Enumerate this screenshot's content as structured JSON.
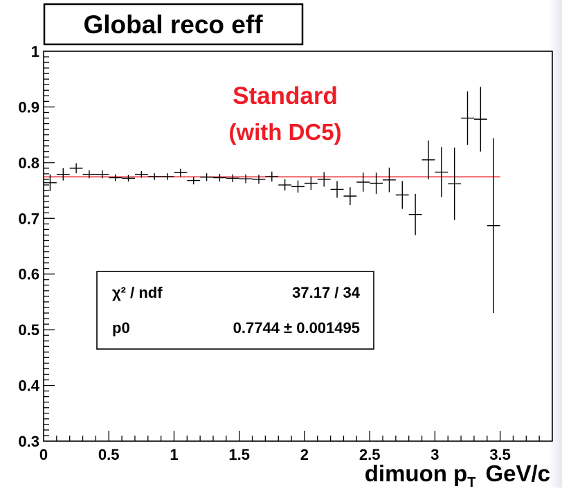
{
  "chart_data": {
    "type": "scatter",
    "title": "Global reco eff",
    "annotation": [
      "Standard",
      "(with DC5)"
    ],
    "annotation_color": "#ee1c25",
    "xlabel": "dimuon p",
    "xlabel_sub": "T",
    "xlabel_unit": "GeV/c",
    "xlim": [
      0,
      3.9
    ],
    "ylim": [
      0.3,
      1.0
    ],
    "x_ticks": [
      "0",
      "0.5",
      "1",
      "1.5",
      "2",
      "2.5",
      "3",
      "3.5"
    ],
    "y_ticks": [
      "0.3",
      "0.4",
      "0.5",
      "0.6",
      "0.7",
      "0.8",
      "0.9",
      "1"
    ],
    "grid": false,
    "fit": {
      "value": 0.7744,
      "x_range": [
        0,
        3.5
      ],
      "color": "#e8000b",
      "stats": {
        "chi2_label": "χ² / ndf",
        "chi2_value": "37.17 / 34",
        "p0_label": "p0",
        "p0_value": "0.7744 ± 0.001495",
        "position": "left-middle"
      }
    },
    "series": [
      {
        "points": [
          {
            "x": 0.05,
            "y": 0.764,
            "err": 0.015
          },
          {
            "x": 0.15,
            "y": 0.779,
            "err": 0.011
          },
          {
            "x": 0.25,
            "y": 0.79,
            "err": 0.009
          },
          {
            "x": 0.35,
            "y": 0.779,
            "err": 0.007
          },
          {
            "x": 0.45,
            "y": 0.779,
            "err": 0.007
          },
          {
            "x": 0.55,
            "y": 0.773,
            "err": 0.006
          },
          {
            "x": 0.65,
            "y": 0.772,
            "err": 0.006
          },
          {
            "x": 0.75,
            "y": 0.779,
            "err": 0.006
          },
          {
            "x": 0.85,
            "y": 0.775,
            "err": 0.006
          },
          {
            "x": 0.95,
            "y": 0.775,
            "err": 0.006
          },
          {
            "x": 1.05,
            "y": 0.782,
            "err": 0.007
          },
          {
            "x": 1.15,
            "y": 0.768,
            "err": 0.007
          },
          {
            "x": 1.25,
            "y": 0.774,
            "err": 0.007
          },
          {
            "x": 1.35,
            "y": 0.773,
            "err": 0.007
          },
          {
            "x": 1.45,
            "y": 0.772,
            "err": 0.007
          },
          {
            "x": 1.55,
            "y": 0.771,
            "err": 0.008
          },
          {
            "x": 1.65,
            "y": 0.77,
            "err": 0.008
          },
          {
            "x": 1.75,
            "y": 0.775,
            "err": 0.009
          },
          {
            "x": 1.85,
            "y": 0.76,
            "err": 0.01
          },
          {
            "x": 1.95,
            "y": 0.757,
            "err": 0.011
          },
          {
            "x": 2.05,
            "y": 0.763,
            "err": 0.012
          },
          {
            "x": 2.15,
            "y": 0.77,
            "err": 0.013
          },
          {
            "x": 2.25,
            "y": 0.752,
            "err": 0.015
          },
          {
            "x": 2.35,
            "y": 0.74,
            "err": 0.016
          },
          {
            "x": 2.45,
            "y": 0.765,
            "err": 0.017
          },
          {
            "x": 2.55,
            "y": 0.763,
            "err": 0.019
          },
          {
            "x": 2.65,
            "y": 0.769,
            "err": 0.022
          },
          {
            "x": 2.75,
            "y": 0.742,
            "err": 0.025
          },
          {
            "x": 2.85,
            "y": 0.707,
            "err": 0.037
          },
          {
            "x": 2.95,
            "y": 0.805,
            "err": 0.035
          },
          {
            "x": 3.05,
            "y": 0.783,
            "err": 0.045
          },
          {
            "x": 3.15,
            "y": 0.762,
            "err": 0.065
          },
          {
            "x": 3.25,
            "y": 0.88,
            "err": 0.048
          },
          {
            "x": 3.35,
            "y": 0.878,
            "err": 0.058
          },
          {
            "x": 3.45,
            "y": 0.687,
            "err": 0.157
          }
        ],
        "x_err": 0.05,
        "color": "#000000"
      }
    ]
  }
}
